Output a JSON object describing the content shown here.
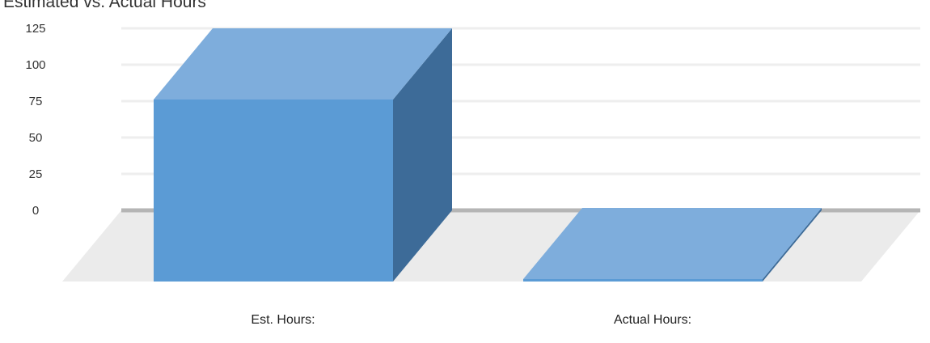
{
  "chart_data": {
    "type": "bar",
    "title": "Estimated vs. Actual Hours",
    "categories": [
      "Est. Hours:",
      "Actual Hours:"
    ],
    "values": [
      125,
      0
    ],
    "ylim": [
      0,
      125
    ],
    "yticks": [
      0,
      25,
      50,
      75,
      100,
      125
    ],
    "xlabel": "",
    "ylabel": "",
    "grid": true,
    "legend": "none",
    "three_d": true,
    "colors": {
      "front": "#5b9bd5",
      "top": "#7eaddc",
      "side": "#3d6b98",
      "floor": "#ebebeb",
      "baseline": "#b5b5b5",
      "grid": "#eeeeee"
    }
  }
}
